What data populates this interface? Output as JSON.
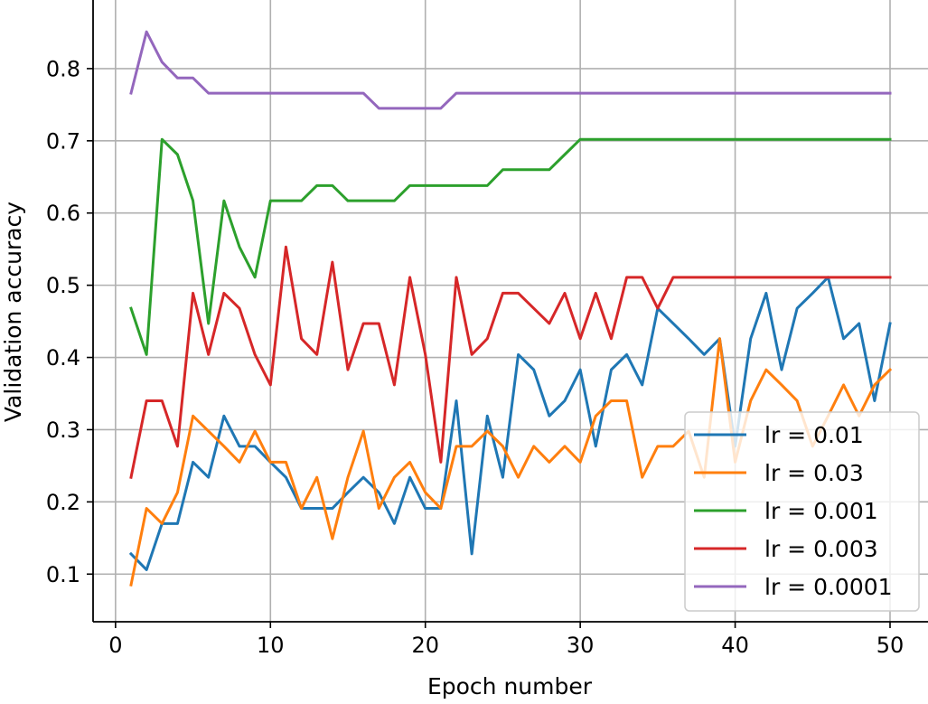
{
  "chart_data": {
    "type": "line",
    "title": "",
    "xlabel": "Epoch number",
    "ylabel": "Validation accuracy",
    "xlim": [
      -1.45,
      52.45
    ],
    "ylim": [
      0.034,
      0.895
    ],
    "xticks": [
      0,
      10,
      20,
      30,
      40,
      50
    ],
    "xtick_labels": [
      "0",
      "10",
      "20",
      "30",
      "40",
      "50"
    ],
    "yticks": [
      0.1,
      0.2,
      0.3,
      0.4,
      0.5,
      0.6,
      0.7,
      0.8
    ],
    "ytick_labels": [
      "0.1",
      "0.2",
      "0.3",
      "0.4",
      "0.5",
      "0.6",
      "0.7",
      "0.8"
    ],
    "grid": true,
    "legend_position": "lower-right",
    "x": [
      1,
      2,
      3,
      4,
      5,
      6,
      7,
      8,
      9,
      10,
      11,
      12,
      13,
      14,
      15,
      16,
      17,
      18,
      19,
      20,
      21,
      22,
      23,
      24,
      25,
      26,
      27,
      28,
      29,
      30,
      31,
      32,
      33,
      34,
      35,
      36,
      37,
      38,
      39,
      40,
      41,
      42,
      43,
      44,
      45,
      46,
      47,
      48,
      49,
      50
    ],
    "series": [
      {
        "name": "lr = 0.01",
        "color": "#1f77b4",
        "values": [
          0.128,
          0.106,
          0.17,
          0.17,
          0.255,
          0.234,
          0.319,
          0.277,
          0.277,
          0.255,
          0.234,
          0.191,
          0.191,
          0.191,
          0.213,
          0.234,
          0.213,
          0.17,
          0.234,
          0.191,
          0.191,
          0.34,
          0.128,
          0.319,
          0.234,
          0.404,
          0.383,
          0.319,
          0.34,
          0.383,
          0.277,
          0.383,
          0.404,
          0.362,
          0.468,
          0.447,
          0.426,
          0.404,
          0.426,
          0.277,
          0.426,
          0.489,
          0.383,
          0.468,
          0.489,
          0.511,
          0.426,
          0.447,
          0.34,
          0.447
        ]
      },
      {
        "name": "lr = 0.03",
        "color": "#ff7f0e",
        "values": [
          0.085,
          0.191,
          0.17,
          0.213,
          0.319,
          0.298,
          0.277,
          0.255,
          0.298,
          0.255,
          0.255,
          0.191,
          0.234,
          0.149,
          0.234,
          0.298,
          0.191,
          0.234,
          0.255,
          0.213,
          0.191,
          0.277,
          0.277,
          0.298,
          0.277,
          0.234,
          0.277,
          0.255,
          0.277,
          0.255,
          0.319,
          0.34,
          0.34,
          0.234,
          0.277,
          0.277,
          0.298,
          0.234,
          0.426,
          0.255,
          0.34,
          0.383,
          0.362,
          0.34,
          0.277,
          0.319,
          0.362,
          0.319,
          0.362,
          0.383
        ]
      },
      {
        "name": "lr = 0.001",
        "color": "#2ca02c",
        "values": [
          0.468,
          0.404,
          0.702,
          0.681,
          0.617,
          0.447,
          0.617,
          0.553,
          0.511,
          0.617,
          0.617,
          0.617,
          0.638,
          0.638,
          0.617,
          0.617,
          0.617,
          0.617,
          0.638,
          0.638,
          0.638,
          0.638,
          0.638,
          0.638,
          0.66,
          0.66,
          0.66,
          0.66,
          0.681,
          0.702,
          0.702,
          0.702,
          0.702,
          0.702,
          0.702,
          0.702,
          0.702,
          0.702,
          0.702,
          0.702,
          0.702,
          0.702,
          0.702,
          0.702,
          0.702,
          0.702,
          0.702,
          0.702,
          0.702,
          0.702
        ]
      },
      {
        "name": "lr = 0.003",
        "color": "#d62728",
        "values": [
          0.234,
          0.34,
          0.34,
          0.277,
          0.489,
          0.404,
          0.489,
          0.468,
          0.404,
          0.362,
          0.553,
          0.426,
          0.404,
          0.532,
          0.383,
          0.447,
          0.447,
          0.362,
          0.511,
          0.404,
          0.255,
          0.511,
          0.404,
          0.426,
          0.489,
          0.489,
          0.468,
          0.447,
          0.489,
          0.426,
          0.489,
          0.426,
          0.511,
          0.511,
          0.468,
          0.511,
          0.511,
          0.511,
          0.511,
          0.511,
          0.511,
          0.511,
          0.511,
          0.511,
          0.511,
          0.511,
          0.511,
          0.511,
          0.511,
          0.511
        ]
      },
      {
        "name": "lr = 0.0001",
        "color": "#9467bd",
        "values": [
          0.766,
          0.851,
          0.809,
          0.787,
          0.787,
          0.766,
          0.766,
          0.766,
          0.766,
          0.766,
          0.766,
          0.766,
          0.766,
          0.766,
          0.766,
          0.766,
          0.745,
          0.745,
          0.745,
          0.745,
          0.745,
          0.766,
          0.766,
          0.766,
          0.766,
          0.766,
          0.766,
          0.766,
          0.766,
          0.766,
          0.766,
          0.766,
          0.766,
          0.766,
          0.766,
          0.766,
          0.766,
          0.766,
          0.766,
          0.766,
          0.766,
          0.766,
          0.766,
          0.766,
          0.766,
          0.766,
          0.766,
          0.766,
          0.766,
          0.766
        ]
      }
    ]
  }
}
